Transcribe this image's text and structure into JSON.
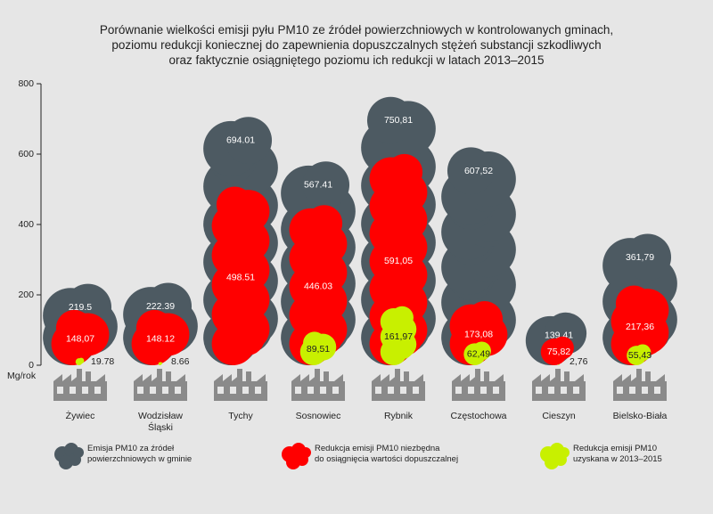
{
  "chart_data": {
    "type": "cloud-bar",
    "title": "Porównanie wielkości emisji pyłu PM10 ze źródeł powierzchniowych w kontrolowanych gminach,\npoziomu redukcji koniecznej do zapewnienia dopuszczalnych stężeń substancji szkodliwych\noraz faktycznie osiągniętego poziomu ich redukcji w latach 2013–2015",
    "y_label": "Mg/rok",
    "categories": [
      "Żywiec",
      "Wodzisław\nŚląski",
      "Tychy",
      "Sosnowiec",
      "Rybnik",
      "Częstochowa",
      "Cieszyn",
      "Bielsko-Biała"
    ],
    "ylim": [
      0,
      800
    ],
    "yticks": [
      0,
      200,
      400,
      600,
      800
    ],
    "series": [
      {
        "name": "Emisja PM10 za źródeł\npowierzchniowych w gminie",
        "color": "#4d5a62",
        "values": [
          219.5,
          222.39,
          694.01,
          567.41,
          750.81,
          607.52,
          139.41,
          361.79
        ],
        "value_labels": [
          "219.5",
          "222.39",
          "694.01",
          "567.41",
          "750,81",
          "607,52",
          "139,41",
          "361,79"
        ]
      },
      {
        "name": "Redukcja emisji PM10 niezbędna\ndo osiągnięcia wartości dopuszczalnej",
        "color": "#ff0000",
        "values": [
          148.07,
          148.12,
          498.51,
          446.03,
          591.05,
          173.08,
          75.82,
          217.36
        ],
        "value_labels": [
          "148,07",
          "148.12",
          "498.51",
          "446.03",
          "591,05",
          "173,08",
          "75,82",
          "217,36"
        ]
      },
      {
        "name": "Redukcja emisji PM10\nuzyskana w 2013–2015",
        "color": "#c8f000",
        "values": [
          19.78,
          8.66,
          null,
          89.51,
          161.97,
          62.49,
          2.76,
          55.43
        ],
        "value_labels": [
          "19.78",
          "8.66",
          null,
          "89,51",
          "161,97",
          "62,49",
          "2,76",
          "55,43"
        ]
      }
    ]
  }
}
